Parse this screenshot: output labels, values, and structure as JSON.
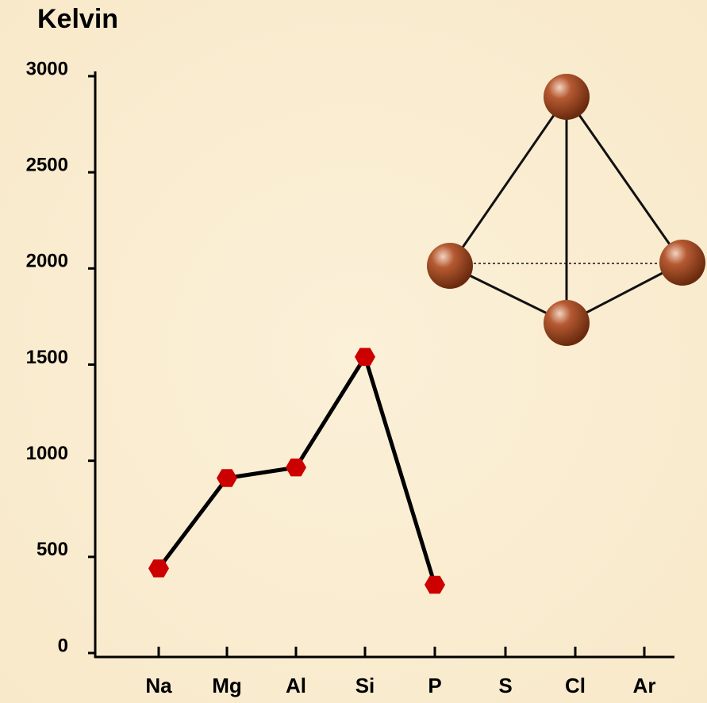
{
  "chart_data": {
    "type": "line",
    "title": "Kelvin",
    "categories": [
      "Na",
      "Mg",
      "Al",
      "Si",
      "P",
      "S",
      "Cl",
      "Ar"
    ],
    "values": [
      440,
      910,
      965,
      1540,
      355,
      null,
      null,
      null
    ],
    "color": "#000000",
    "marker_color": "#cc0000",
    "ylim": [
      0,
      3000
    ],
    "yticks": [
      0,
      500,
      1000,
      1500,
      2000,
      2500,
      3000
    ]
  }
}
